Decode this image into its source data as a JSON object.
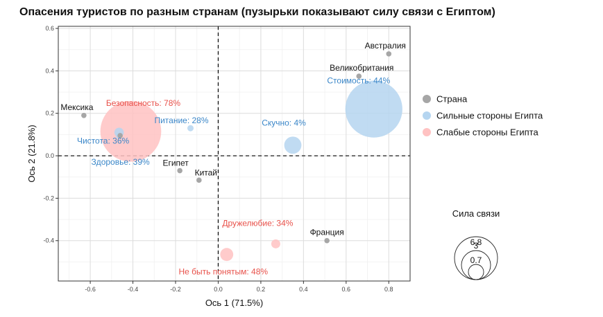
{
  "chart_data": {
    "type": "scatter",
    "title": "Опасения туристов по разным странам (пузырьки показывают силу связи с Египтом)",
    "xlabel": "Ось 1 (71.5%)",
    "ylabel": "Ось 2 (21.8%)",
    "xlim": [
      -0.75,
      0.9
    ],
    "ylim": [
      -0.59,
      0.61
    ],
    "x_ticks": [
      -0.6,
      -0.4,
      -0.2,
      0.0,
      0.2,
      0.4,
      0.6,
      0.8
    ],
    "x_tick_labels": [
      "-0.6",
      "-0.4",
      "-0.2",
      "0.0",
      "0.2",
      "0.4",
      "0.6",
      "0.8"
    ],
    "y_ticks": [
      -0.4,
      -0.2,
      0.0,
      0.2,
      0.4,
      0.6
    ],
    "y_tick_labels": [
      "-0.4",
      "-0.2",
      "0.0",
      "0.2",
      "0.4",
      "0.6"
    ],
    "grid": true,
    "reference_lines": {
      "x": 0,
      "y": 0,
      "style": "dashed"
    },
    "legend": {
      "position": "right",
      "entries": [
        {
          "label": "Страна",
          "color": "#a6a6a6"
        },
        {
          "label": "Сильные стороны Египта",
          "color": "#b5d5f0"
        },
        {
          "label": "Слабые стороны Египта",
          "color": "#ffc2c2"
        }
      ]
    },
    "size_legend": {
      "title": "Сила связи",
      "values": [
        6.8,
        3,
        0.7
      ],
      "labels": [
        "6.8",
        "3",
        "0.7"
      ]
    },
    "series": [
      {
        "type": "Страна",
        "color": "#a6a6a6",
        "label_color": "#111111",
        "points": [
          {
            "label": "Австралия",
            "x": 0.8,
            "y": 0.48
          },
          {
            "label": "Великобритания",
            "x": 0.66,
            "y": 0.375
          },
          {
            "label": "Мексика",
            "x": -0.63,
            "y": 0.19
          },
          {
            "label": "Египет",
            "x": -0.18,
            "y": -0.07
          },
          {
            "label": "Китай",
            "x": -0.09,
            "y": -0.115
          },
          {
            "label": "Франция",
            "x": 0.51,
            "y": -0.4
          },
          {
            "label": "",
            "x": -0.46,
            "y": 0.095
          }
        ]
      },
      {
        "type": "Сильные стороны Египта",
        "color": "#b5d5f0",
        "label_color": "#3a86c8",
        "points": [
          {
            "label": "Стоимость: 44%",
            "x": 0.73,
            "y": 0.22,
            "strength": 44
          },
          {
            "label": "Скучно: 4%",
            "x": 0.35,
            "y": 0.05,
            "strength": 4
          },
          {
            "label": "Питание: 28%",
            "x": -0.13,
            "y": 0.13,
            "strength": 0.3
          },
          {
            "label": "Чистота: 36%",
            "x": -0.465,
            "y": 0.11,
            "strength": 1.2
          },
          {
            "label": "Здоровье: 39%",
            "x": -0.465,
            "y": 0.095,
            "strength": 0.4
          }
        ]
      },
      {
        "type": "Слабые стороны Египта",
        "color": "#ffc2c2",
        "label_color": "#e8514a",
        "points": [
          {
            "label": "Безопасность: 78%",
            "x": -0.41,
            "y": 0.115,
            "strength": 50
          },
          {
            "label": "Дружелюбие: 34%",
            "x": 0.27,
            "y": -0.415,
            "strength": 1.1
          },
          {
            "label": "Не быть понятым: 48%",
            "x": 0.04,
            "y": -0.465,
            "strength": 2.3
          }
        ]
      }
    ]
  }
}
